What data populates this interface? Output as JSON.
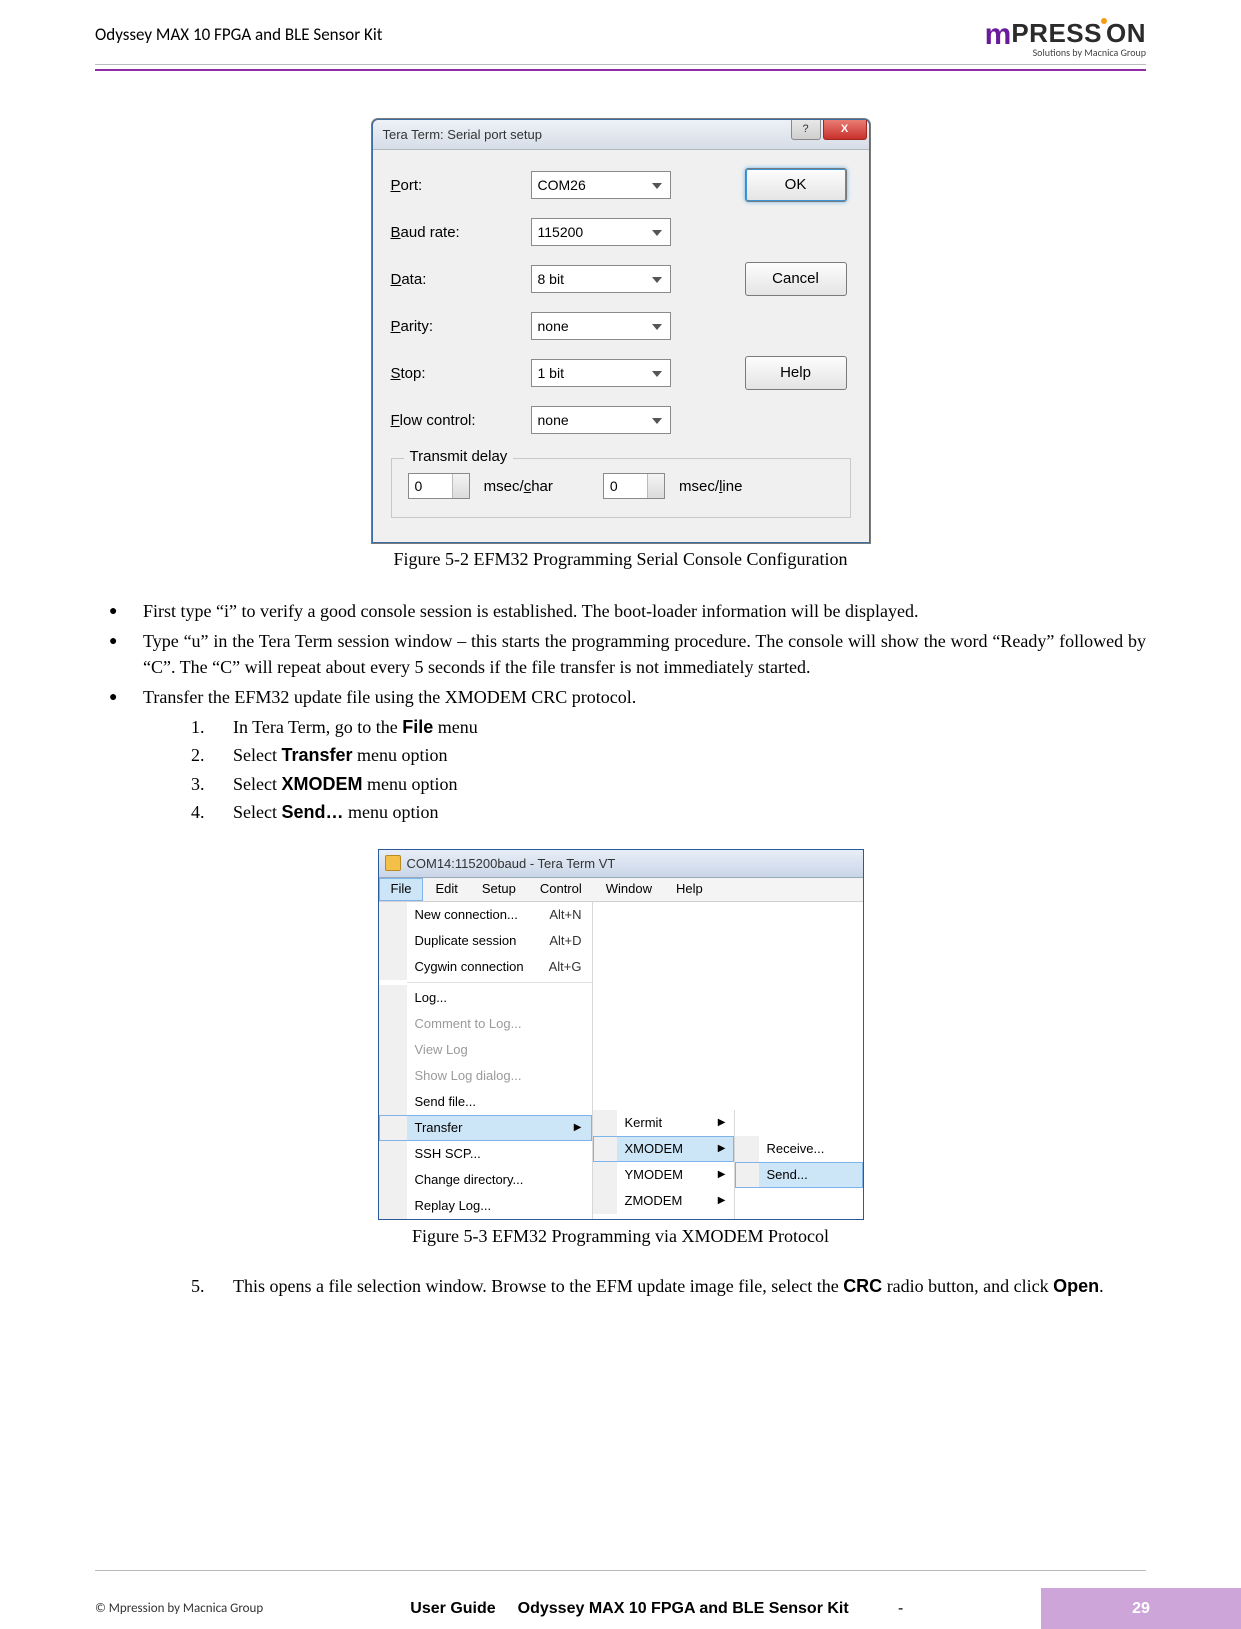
{
  "header": {
    "title": "Odyssey MAX 10 FPGA and BLE Sensor Kit",
    "logo_main_prefix": "m",
    "logo_main_rest": "PRESSION",
    "logo_sub": "Solutions by Macnica Group"
  },
  "dialog1": {
    "title": "Tera Term: Serial port setup",
    "close_x": "X",
    "rows": {
      "port": {
        "label_pre": "P",
        "label_rest": "ort:",
        "value": "COM26"
      },
      "baud": {
        "label_pre": "B",
        "label_rest": "aud rate:",
        "value": "115200"
      },
      "data": {
        "label_pre": "D",
        "label_rest": "ata:",
        "value": "8 bit"
      },
      "parity": {
        "label_pre": "P",
        "label_rest": "arity:",
        "value": "none"
      },
      "stop": {
        "label_pre": "S",
        "label_rest": "top:",
        "value": "1 bit"
      },
      "flow": {
        "label_pre": "F",
        "label_rest": "low control:",
        "value": "none"
      }
    },
    "buttons": {
      "ok": "OK",
      "cancel": "Cancel",
      "help": "Help"
    },
    "transmit": {
      "legend": "Transmit delay",
      "char_value": "0",
      "char_label_pre": "msec/",
      "char_label_u": "c",
      "char_label_post": "har",
      "line_value": "0",
      "line_label_pre": "msec/",
      "line_label_u": "l",
      "line_label_post": "ine"
    }
  },
  "caption1": "Figure 5-2 EFM32 Programming Serial Console Configuration",
  "bullets": {
    "b1": "First type “i” to verify a good console session is established.   The boot-loader information will be displayed.",
    "b2": "Type “u” in the Tera Term session window – this starts the programming procedure.   The console will show the word “Ready” followed by “C”.   The “C” will repeat about every 5 seconds if the file transfer is not immediately started.",
    "b3": "Transfer the EFM32 update file using the XMODEM CRC protocol.",
    "n1_pre": "In Tera Term, go to the ",
    "n1_bold": "File",
    "n1_post": " menu",
    "n2_pre": "Select ",
    "n2_bold": "Transfer",
    "n2_post": " menu option",
    "n3_pre": "Select ",
    "n3_bold": "XMODEM",
    "n3_post": " menu option",
    "n4_pre": "Select ",
    "n4_bold": "Send…",
    "n4_post": " menu option",
    "num1": "1.",
    "num2": "2.",
    "num3": "3.",
    "num4": "4."
  },
  "dialog2": {
    "title": "COM14:115200baud - Tera Term VT",
    "menubar": {
      "file": "File",
      "edit": "Edit",
      "setup": "Setup",
      "control": "Control",
      "window": "Window",
      "help": "Help"
    },
    "menu1": {
      "new_conn": "New connection...",
      "new_conn_sc": "Alt+N",
      "dup": "Duplicate session",
      "dup_sc": "Alt+D",
      "cygwin": "Cygwin connection",
      "cygwin_sc": "Alt+G",
      "log": "Log...",
      "comment": "Comment to Log...",
      "view_log": "View Log",
      "show_log": "Show Log dialog...",
      "send_file": "Send file...",
      "transfer": "Transfer",
      "ssh_scp": "SSH SCP...",
      "chdir": "Change directory...",
      "replay": "Replay Log..."
    },
    "menu2": {
      "kermit": "Kermit",
      "xmodem": "XMODEM",
      "ymodem": "YMODEM",
      "zmodem": "ZMODEM"
    },
    "menu3": {
      "receive": "Receive...",
      "send": "Send..."
    }
  },
  "caption2": "Figure 5-3 EFM32 Programming via XMODEM Protocol",
  "step5": {
    "num": "5.",
    "pre": "This opens a file selection window.   Browse to the EFM update image file, select the ",
    "bold1": "CRC",
    "mid": " radio button, and click ",
    "bold2": "Open",
    "post": "."
  },
  "footer": {
    "copyright": "© Mpression by Macnica Group",
    "user_guide": "User Guide",
    "product": "Odyssey MAX 10 FPGA and BLE Sensor Kit",
    "dash": "-",
    "page": "29"
  }
}
